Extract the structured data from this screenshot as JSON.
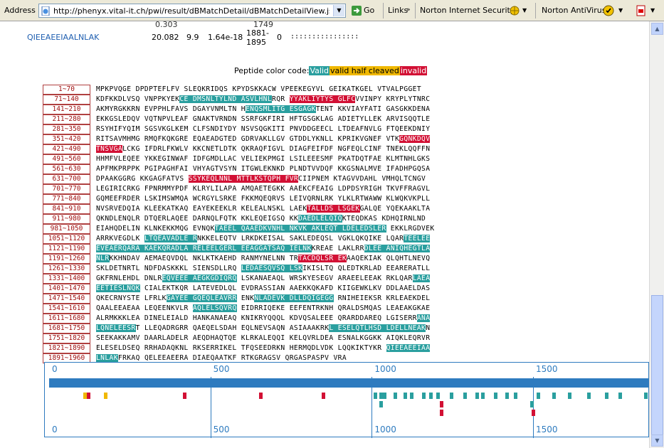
{
  "toolbar": {
    "address_label": "Address",
    "url": "http://phenyx.vital-it.ch/pwi/result/dBMatchDetail/dBMatchDetailView.jsp?job_id=",
    "go_label": "Go",
    "links_label": "Links",
    "norton_security": "Norton Internet Security",
    "norton_antivirus": "Norton AntiVirus"
  },
  "hit": {
    "peptide": "QIEEAEEIAALNLAK",
    "score": "20.082",
    "z": "9.9",
    "pvalue": "1.64e-18",
    "position": "1881-1895",
    "missed": "0",
    "dots": "::::::::::::::::",
    "prev_score": "0.303",
    "prev_pos": "1749"
  },
  "legend": {
    "prefix": "Peptide color code:",
    "valid": "Valid",
    "half": "valid half cleaved",
    "invalid": "invalid",
    "colors": {
      "valid": "#2a9f9f",
      "half": "#f0b800",
      "invalid": "#d21034"
    }
  },
  "ranges": [
    "1~70",
    "71~140",
    "141~210",
    "211~280",
    "281~350",
    "351~420",
    "421~490",
    "491~560",
    "561~630",
    "631~700",
    "701~770",
    "771~840",
    "841~910",
    "911~980",
    "981~1050",
    "1051~1120",
    "1121~1190",
    "1191~1260",
    "1261~1330",
    "1331~1400",
    "1401~1470",
    "1471~1540",
    "1541~1610",
    "1611~1680",
    "1681~1750",
    "1751~1820",
    "1821~1890",
    "1891~1960"
  ],
  "sequence_rows": [
    [
      [
        "MPKPVQGE DPDPTEFLFV SLEQKRIDQS KPYDSKKACW VPEEKEGYVL GEIKATKGEL VTVALPGGET",
        ""
      ]
    ],
    [
      [
        "KDFKKDLVSQ VNPPKYEK",
        ""
      ],
      [
        "CE DMSNLTYLND ASVLHNL",
        "v"
      ],
      [
        "RQR ",
        ""
      ],
      [
        "YYAKLIYTYS GLFC",
        "i"
      ],
      [
        "VVINPY KRYPLYTNRC",
        ""
      ]
    ],
    [
      [
        "AKMYRGKKRN EVPPHLFAVS DGAYVNMLTN H",
        ""
      ],
      [
        "ENQSMLITG ESGAGK",
        "v"
      ],
      [
        "TENT KKVIAYFATI GASGKKDENA",
        ""
      ]
    ],
    [
      [
        "EKKGSLEDQV VQTNPVLEAF GNAKTVRNDN SSRFGKFIRI HFTGSGKLAG ADIETYLLEK ARVISQQTLE",
        ""
      ]
    ],
    [
      [
        "RSYHIFYQIM SGSVKGLKEM CLFSNDIYDY NSVSQGKITI PNVDDGEECL LTDEAFNVLG FTQEEKDNIY",
        ""
      ]
    ],
    [
      [
        "RITSAVMHMG RMQFKQKGRE EQAEADGTED GDRVAKLLGV GTDDLYKNLL KPRIKVGNEF VTK",
        ""
      ],
      [
        "GQNKDQV",
        "i"
      ]
    ],
    [
      [
        "TNSVGA",
        "i"
      ],
      [
        "LCKG IFDRLFKWLV KKCNETLDTK QKRAQFIGVL DIAGFEIFDF NGFEQLCINF TNEKLQQFFN",
        ""
      ]
    ],
    [
      [
        "HHMFVLEQEE YKKEGINWAF IDFGMDLLAC VELIEKPMGI LSILEEESMF PKATDQTFAE KLMTNHLGKS",
        ""
      ]
    ],
    [
      [
        "APFMKPRPPK PGIPAGHFAI VHYAGTVSYN ITGWLEKNKD PLNDTVVDQF KKGSNALMVE IFADHPGQSA",
        ""
      ]
    ],
    [
      [
        "DPAAKGGRG KKGAGFATVS ",
        ""
      ],
      [
        "SSYKEQLNNL MTTLKSTQPH FVR",
        "i"
      ],
      [
        "CIIPNEM KTAGVVDAHL VMHQLTCNGV",
        ""
      ]
    ],
    [
      [
        "LEGIRICRKG FPNRMMYPDF KLRYLILAPA AMQAETEGKK AAEKCFEAIG LDPDSYRIGH TKVFFRAGVL",
        ""
      ]
    ],
    [
      [
        "GQMEEFRDER LSKIMSWMQA WCRGYLSRKE FKKMQEQRVS LEIVQRNLRK YLKLRTWAWW KLWQKVKPLL",
        ""
      ]
    ],
    [
      [
        "NVSRVEDQIA KLEEKATKAQ EAYEKEEKLR KELEALNSKL LAEK",
        ""
      ],
      [
        "TALLDS LSGEK",
        "i"
      ],
      [
        "GALQE YQEKAAKLTA",
        ""
      ]
    ],
    [
      [
        "QKNDLENQLR DTQERLAQEE DARNQLFQTK KKLEQEIGSQ KK",
        ""
      ],
      [
        "DAEDLELQIQ",
        "v"
      ],
      [
        "KTEQDKAS KDHQIRNLND",
        ""
      ]
    ],
    [
      [
        "EIAHQDELIN KLNKEKKMQG EVNQK",
        ""
      ],
      [
        "TAEEL QAAEDKVNHL NKVK AKLEQT LDELEDSLER",
        "v"
      ],
      [
        " EKKLRGDVEK",
        ""
      ]
    ],
    [
      [
        "ARRKVEGDLK ",
        ""
      ],
      [
        "LTQEAVADLE R",
        "v"
      ],
      [
        "NKKELEQTV LRKDKEISAL SAKLEDEQSL VGKLQKQIKE LQAR",
        ""
      ],
      [
        "TEELEE",
        "v"
      ]
    ],
    [
      [
        "EVEAER",
        "v"
      ],
      [
        "QARA KAEKQRADLA RELEELGERL EEAGGATSAQ IELNK",
        "v"
      ],
      [
        "KREAE LAKLRR",
        ""
      ],
      [
        "DLEE ANIQHEGTLA",
        "v"
      ]
    ],
    [
      [
        "NLR",
        "v"
      ],
      [
        "KKHNDAV AEMAEQVDQL NKLKTKAEHD RANMYNELNN TR",
        ""
      ],
      [
        "TACDQLSR EK",
        "i"
      ],
      [
        "AAQEKIAK QLQHTLNEVQ",
        ""
      ]
    ],
    [
      [
        "SKLDETNRTL NDFDASKKKL SIENSDLLRQ ",
        ""
      ],
      [
        "LEDAESQVSQ LSK",
        "v"
      ],
      [
        "IKISLTQ QLEDTKRLAD EEARERATLL",
        ""
      ]
    ],
    [
      [
        "GKFRNLEHDL DNLR",
        ""
      ],
      [
        "EQVEEE AEGKGDIQRQ",
        "v"
      ],
      [
        " LSKANAEAQL WRSKYESEGV ARAEELEEAK RKLQAR",
        ""
      ],
      [
        "LAEA",
        "v"
      ]
    ],
    [
      [
        "EETIESLNQK",
        "v"
      ],
      [
        " CIALEKTKQR LATEVEDLQL EVDRASSIAN AAEKKQKAFD KIIGEWKLKV DDLAAELDAS",
        ""
      ]
    ],
    [
      [
        "QKECRNYSTE LFRLK",
        ""
      ],
      [
        "GAYEE GQEQLEAVRR",
        "v"
      ],
      [
        " ENK",
        ""
      ],
      [
        "NLADEVK DLLDQIGEGG",
        "v"
      ],
      [
        " RNIHEIEKSR KRLEAEKDEL",
        ""
      ]
    ],
    [
      [
        "QAALEEAEAA LEQEENKVLR ",
        ""
      ],
      [
        "AQLELSQVRQ",
        "v"
      ],
      [
        " EIDRRIQEKE EEFENTRKNH QRALDSMQAS LEAEAKGKAE",
        ""
      ]
    ],
    [
      [
        "ALRMKKKLEA DINELEIALD HANKANAEAQ KNIKRYQQQL KDVQSALEEE QRARDDAREQ LGISERR",
        ""
      ],
      [
        "ANA",
        "v"
      ]
    ],
    [
      [
        "LQNELEESR",
        "v"
      ],
      [
        "T LLEQADRGRR QAEQELSDAH EQLNEVSAQN ASIAAAKRK",
        ""
      ],
      [
        "L ESELQTLHSD LDELLNEAK",
        "v"
      ],
      [
        "N",
        ""
      ]
    ],
    [
      [
        "SEEKAKKAMV DAARLADELR AEQDHAQTQE KLRKALEQQI KELQVRLDEA ESNALKGGKK AIQKLEQRVR",
        ""
      ]
    ],
    [
      [
        "ELESELDSEQ RRHADAQKNL RKSERRIKEL TFQSEEDRKN HERMQDLVDK LQQKIKTYKR ",
        ""
      ],
      [
        "QIEEAEEIAA",
        "v"
      ]
    ],
    [
      [
        "LNLAK",
        "v"
      ],
      [
        "FRKAQ QELEEAEERA DIAEQAATKF RTKGRAGSV QRGASPASPV VRA",
        ""
      ]
    ]
  ],
  "map": {
    "ticks": [
      "0",
      "500",
      "1000",
      "1500"
    ],
    "length": 1960,
    "marks": [
      {
        "pos": 105,
        "row": 0,
        "c": "h"
      },
      {
        "pos": 118,
        "row": 0,
        "c": "i"
      },
      {
        "pos": 170,
        "row": 0,
        "c": "h"
      },
      {
        "pos": 415,
        "row": 0,
        "c": "i"
      },
      {
        "pos": 650,
        "row": 0,
        "c": "i"
      },
      {
        "pos": 845,
        "row": 0,
        "c": "i"
      },
      {
        "pos": 1005,
        "row": 0,
        "c": "v"
      },
      {
        "pos": 1023,
        "row": 0,
        "c": "v"
      },
      {
        "pos": 1035,
        "row": 0,
        "c": "v"
      },
      {
        "pos": 1068,
        "row": 0,
        "c": "v"
      },
      {
        "pos": 1098,
        "row": 0,
        "c": "v"
      },
      {
        "pos": 1118,
        "row": 0,
        "c": "v"
      },
      {
        "pos": 1155,
        "row": 0,
        "c": "v"
      },
      {
        "pos": 1178,
        "row": 0,
        "c": "v"
      },
      {
        "pos": 1200,
        "row": 0,
        "c": "v"
      },
      {
        "pos": 1243,
        "row": 0,
        "c": "v"
      },
      {
        "pos": 1283,
        "row": 0,
        "c": "v"
      },
      {
        "pos": 1322,
        "row": 0,
        "c": "v"
      },
      {
        "pos": 1340,
        "row": 0,
        "c": "v"
      },
      {
        "pos": 1378,
        "row": 0,
        "c": "v"
      },
      {
        "pos": 1415,
        "row": 0,
        "c": "v"
      },
      {
        "pos": 1440,
        "row": 0,
        "c": "v"
      },
      {
        "pos": 1510,
        "row": 0,
        "c": "v"
      },
      {
        "pos": 1560,
        "row": 0,
        "c": "v"
      },
      {
        "pos": 1608,
        "row": 0,
        "c": "v"
      },
      {
        "pos": 1668,
        "row": 0,
        "c": "v"
      },
      {
        "pos": 1722,
        "row": 0,
        "c": "v"
      },
      {
        "pos": 1765,
        "row": 0,
        "c": "v"
      },
      {
        "pos": 1845,
        "row": 0,
        "c": "v"
      },
      {
        "pos": 1882,
        "row": 0,
        "c": "v"
      },
      {
        "pos": 1023,
        "row": 1,
        "c": "v"
      },
      {
        "pos": 1210,
        "row": 1,
        "c": "i"
      },
      {
        "pos": 1492,
        "row": 1,
        "c": "v"
      },
      {
        "pos": 1210,
        "row": 2,
        "c": "i"
      },
      {
        "pos": 1496,
        "row": 2,
        "c": "i"
      }
    ]
  }
}
